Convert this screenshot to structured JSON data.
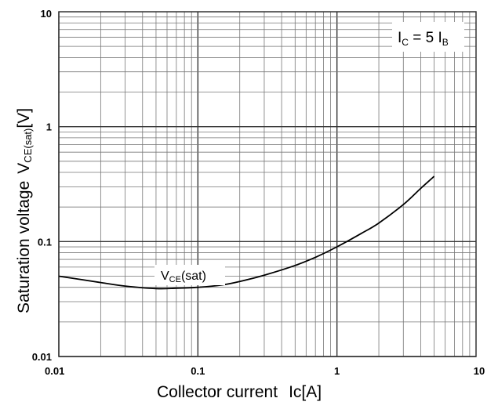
{
  "chart_data": {
    "type": "line",
    "title": "",
    "xlabel": {
      "main": "Collector current",
      "symbol": "Ic[A]"
    },
    "ylabel": {
      "main": "Saturation voltage",
      "symbol": "V",
      "subscript": "CE(sat)",
      "unit": "[V]"
    },
    "x_scale": "log",
    "y_scale": "log",
    "xlim": [
      0.01,
      10
    ],
    "ylim": [
      0.01,
      10
    ],
    "grid": true,
    "x_ticks": [
      "0.01",
      "0.1",
      "1",
      "10"
    ],
    "y_ticks": [
      "0.01",
      "0.1",
      "1",
      "10"
    ],
    "series": [
      {
        "name": "VCE(sat)",
        "color": "#000000",
        "x": [
          0.01,
          0.02,
          0.03,
          0.05,
          0.07,
          0.1,
          0.15,
          0.2,
          0.3,
          0.5,
          0.7,
          1.0,
          1.5,
          2.0,
          3.0,
          4.0,
          5.0
        ],
        "y": [
          0.05,
          0.044,
          0.041,
          0.039,
          0.0393,
          0.04,
          0.042,
          0.045,
          0.051,
          0.062,
          0.073,
          0.09,
          0.118,
          0.145,
          0.21,
          0.29,
          0.37
        ]
      }
    ],
    "annotations": {
      "curve_label": {
        "main": "V",
        "sub": "CE",
        "tail": "(sat)"
      },
      "condition": {
        "lhs": "I",
        "lhs_sub": "C",
        "mid": " = 5 I",
        "rhs_sub": "B"
      }
    }
  }
}
